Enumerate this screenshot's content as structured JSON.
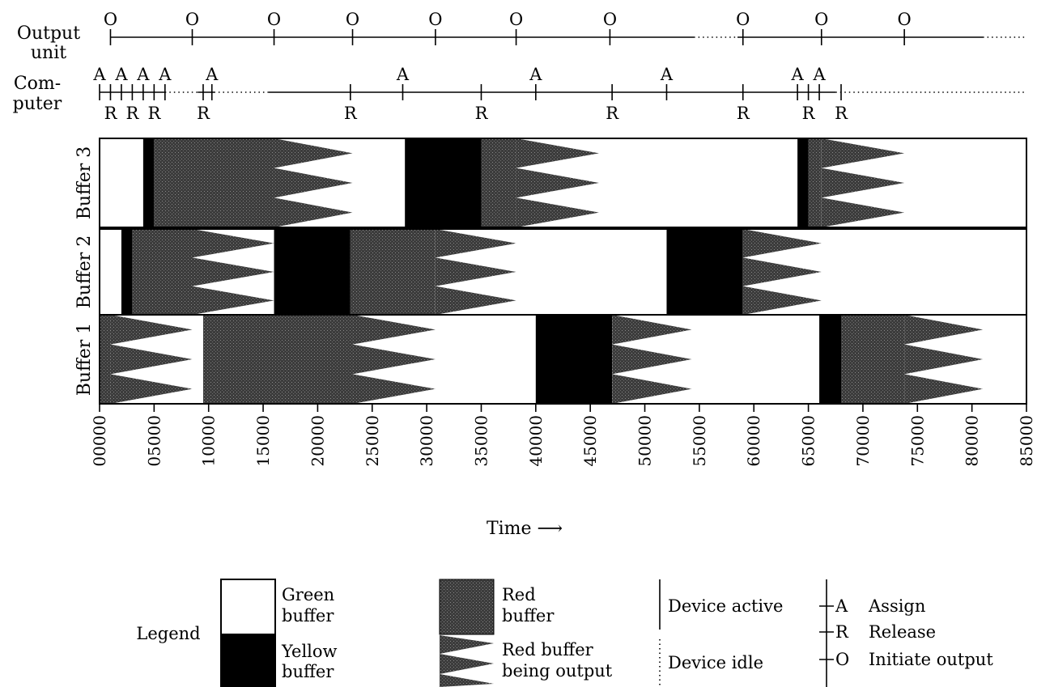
{
  "chart_data": {
    "type": "gantt",
    "xlim": [
      0,
      85000
    ],
    "x_ticks": [
      "00000",
      "05000",
      "10000",
      "15000",
      "20000",
      "25000",
      "30000",
      "35000",
      "40000",
      "45000",
      "50000",
      "55000",
      "60000",
      "65000",
      "70000",
      "75000",
      "80000",
      "85000"
    ],
    "xlabel": "Time ⟶",
    "tracks": {
      "output_unit": {
        "label_line1": "Output",
        "label_line2": "unit",
        "active": [
          [
            1000,
            54500
          ],
          [
            58500,
            81000
          ]
        ],
        "idle": [
          [
            54500,
            58500
          ],
          [
            81000,
            85000
          ]
        ],
        "events": [
          {
            "t": 1000,
            "type": "O"
          },
          {
            "t": 8500,
            "type": "O"
          },
          {
            "t": 16000,
            "type": "O"
          },
          {
            "t": 23200,
            "type": "O"
          },
          {
            "t": 30800,
            "type": "O"
          },
          {
            "t": 38200,
            "type": "O"
          },
          {
            "t": 46800,
            "type": "O"
          },
          {
            "t": 59000,
            "type": "O"
          },
          {
            "t": 66200,
            "type": "O"
          },
          {
            "t": 73800,
            "type": "O"
          }
        ]
      },
      "computer": {
        "label_line1": "Com-",
        "label_line2": "puter",
        "active": [
          [
            0,
            6000
          ],
          [
            9000,
            10500
          ],
          [
            15500,
            67500
          ]
        ],
        "idle": [
          [
            6000,
            9000
          ],
          [
            10500,
            15500
          ],
          [
            67500,
            85000
          ]
        ],
        "events": [
          {
            "t": 0,
            "type": "A"
          },
          {
            "t": 1000,
            "type": "R"
          },
          {
            "t": 2000,
            "type": "A"
          },
          {
            "t": 3000,
            "type": "R"
          },
          {
            "t": 4000,
            "type": "A"
          },
          {
            "t": 5000,
            "type": "R"
          },
          {
            "t": 6000,
            "type": "A"
          },
          {
            "t": 9500,
            "type": "R"
          },
          {
            "t": 10300,
            "type": "A"
          },
          {
            "t": 23000,
            "type": "R"
          },
          {
            "t": 27800,
            "type": "A"
          },
          {
            "t": 35000,
            "type": "R"
          },
          {
            "t": 40000,
            "type": "A"
          },
          {
            "t": 47000,
            "type": "R"
          },
          {
            "t": 52000,
            "type": "A"
          },
          {
            "t": 59000,
            "type": "R"
          },
          {
            "t": 64000,
            "type": "A"
          },
          {
            "t": 65000,
            "type": "R"
          },
          {
            "t": 66000,
            "type": "A"
          },
          {
            "t": 68000,
            "type": "R"
          }
        ]
      }
    },
    "buffers": [
      {
        "name": "Buffer 3",
        "segments": [
          {
            "start": 0,
            "end": 4000,
            "state": "green"
          },
          {
            "start": 4000,
            "end": 5000,
            "state": "yellow"
          },
          {
            "start": 5000,
            "end": 16000,
            "state": "red"
          },
          {
            "start": 16000,
            "end": 23200,
            "state": "output"
          },
          {
            "start": 23200,
            "end": 28000,
            "state": "green"
          },
          {
            "start": 28000,
            "end": 35000,
            "state": "yellow"
          },
          {
            "start": 35000,
            "end": 38200,
            "state": "red"
          },
          {
            "start": 38200,
            "end": 45800,
            "state": "output"
          },
          {
            "start": 45800,
            "end": 64000,
            "state": "green"
          },
          {
            "start": 64000,
            "end": 65000,
            "state": "yellow"
          },
          {
            "start": 65000,
            "end": 66200,
            "state": "red"
          },
          {
            "start": 66200,
            "end": 73800,
            "state": "output"
          },
          {
            "start": 73800,
            "end": 85000,
            "state": "green"
          }
        ]
      },
      {
        "name": "Buffer 2",
        "segments": [
          {
            "start": 0,
            "end": 2000,
            "state": "green"
          },
          {
            "start": 2000,
            "end": 3000,
            "state": "yellow"
          },
          {
            "start": 3000,
            "end": 8500,
            "state": "red"
          },
          {
            "start": 8500,
            "end": 16000,
            "state": "output"
          },
          {
            "start": 16000,
            "end": 23000,
            "state": "yellow"
          },
          {
            "start": 23000,
            "end": 30800,
            "state": "red"
          },
          {
            "start": 30800,
            "end": 38200,
            "state": "output"
          },
          {
            "start": 38200,
            "end": 52000,
            "state": "green"
          },
          {
            "start": 52000,
            "end": 59000,
            "state": "yellow"
          },
          {
            "start": 59000,
            "end": 66200,
            "state": "output"
          },
          {
            "start": 66200,
            "end": 85000,
            "state": "green"
          }
        ]
      },
      {
        "name": "Buffer 1",
        "segments": [
          {
            "start": 0,
            "end": 1000,
            "state": "red"
          },
          {
            "start": 1000,
            "end": 8500,
            "state": "output"
          },
          {
            "start": 8500,
            "end": 9500,
            "state": "green"
          },
          {
            "start": 9500,
            "end": 23200,
            "state": "red"
          },
          {
            "start": 23200,
            "end": 30800,
            "state": "output"
          },
          {
            "start": 30800,
            "end": 40000,
            "state": "green"
          },
          {
            "start": 40000,
            "end": 47000,
            "state": "yellow"
          },
          {
            "start": 47000,
            "end": 54300,
            "state": "output"
          },
          {
            "start": 54300,
            "end": 66000,
            "state": "green"
          },
          {
            "start": 66000,
            "end": 68000,
            "state": "yellow"
          },
          {
            "start": 68000,
            "end": 73800,
            "state": "red"
          },
          {
            "start": 73800,
            "end": 81000,
            "state": "output"
          },
          {
            "start": 81000,
            "end": 85000,
            "state": "green"
          }
        ]
      }
    ],
    "legend": {
      "title": "Legend",
      "green_line1": "Green",
      "green_line2": "buffer",
      "yellow_line1": "Yellow",
      "yellow_line2": "buffer",
      "red_line1": "Red",
      "red_line2": "buffer",
      "output_line1": "Red buffer",
      "output_line2": "being output",
      "device_active": "Device active",
      "device_idle": "Device idle",
      "assign_symbol": "A",
      "assign_text": "Assign",
      "release_symbol": "R",
      "release_text": "Release",
      "initiate_symbol": "O",
      "initiate_text": "Initiate output"
    },
    "colors": {
      "green": "#ffffff",
      "yellow": "#000000",
      "red": "#444444",
      "red_stipple": "#777777",
      "line": "#000000"
    }
  }
}
